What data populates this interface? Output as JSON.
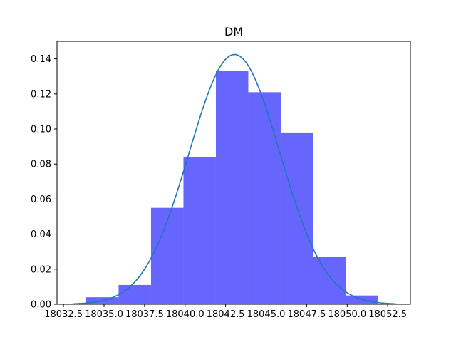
{
  "chart_data": {
    "type": "bar",
    "title": "DM",
    "xlabel": "",
    "ylabel": "",
    "xlim": [
      18032.1,
      18053.9
    ],
    "ylim": [
      0,
      0.15
    ],
    "x_ticks": [
      18032.5,
      18035.0,
      18037.5,
      18040.0,
      18042.5,
      18045.0,
      18047.5,
      18050.0,
      18052.5
    ],
    "x_tick_labels": [
      "18032.5",
      "18035.0",
      "18037.5",
      "18040.0",
      "18042.5",
      "18045.0",
      "18047.5",
      "18050.0",
      "18052.5"
    ],
    "y_ticks": [
      0.0,
      0.02,
      0.04,
      0.06,
      0.08,
      0.1,
      0.12,
      0.14
    ],
    "y_tick_labels": [
      "0.00",
      "0.02",
      "0.04",
      "0.06",
      "0.08",
      "0.10",
      "0.12",
      "0.14"
    ],
    "grid": false,
    "histogram": {
      "color": "#6666ff",
      "bins": [
        {
          "x0": 18033.9,
          "x1": 18035.9,
          "value": 0.004
        },
        {
          "x0": 18035.9,
          "x1": 18037.9,
          "value": 0.011
        },
        {
          "x0": 18037.9,
          "x1": 18039.9,
          "value": 0.055
        },
        {
          "x0": 18039.9,
          "x1": 18041.9,
          "value": 0.084
        },
        {
          "x0": 18041.9,
          "x1": 18043.9,
          "value": 0.133
        },
        {
          "x0": 18043.9,
          "x1": 18045.9,
          "value": 0.121
        },
        {
          "x0": 18045.9,
          "x1": 18047.9,
          "value": 0.098
        },
        {
          "x0": 18047.9,
          "x1": 18049.9,
          "value": 0.027
        },
        {
          "x0": 18049.9,
          "x1": 18051.9,
          "value": 0.005
        }
      ]
    },
    "curve": {
      "type": "normal_pdf",
      "color": "#1f77b4",
      "mean": 18043.05,
      "std": 2.8,
      "x_range": [
        18033.1,
        18053.0
      ],
      "peak": 0.1425
    }
  }
}
